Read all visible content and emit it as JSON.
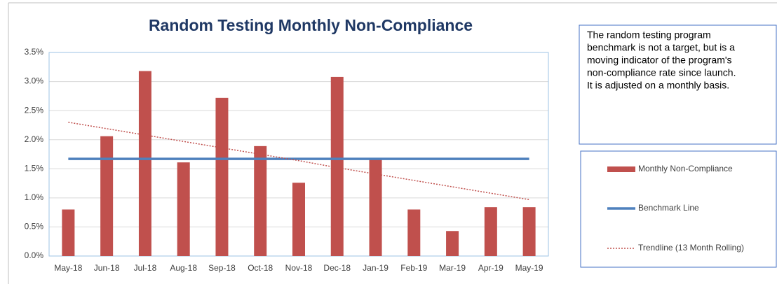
{
  "chart_data": {
    "type": "bar",
    "title": "Random Testing Monthly Non-Compliance",
    "categories": [
      "May-18",
      "Jun-18",
      "Jul-18",
      "Aug-18",
      "Sep-18",
      "Oct-18",
      "Nov-18",
      "Dec-18",
      "Jan-19",
      "Feb-19",
      "Mar-19",
      "Apr-19",
      "May-19"
    ],
    "series": [
      {
        "name": "Monthly Non-Compliance",
        "type": "bar",
        "color": "#c0504d",
        "values": [
          0.8,
          2.06,
          3.18,
          1.61,
          2.72,
          1.89,
          1.26,
          3.08,
          1.67,
          0.8,
          0.43,
          0.84,
          0.84
        ]
      },
      {
        "name": "Benchmark Line",
        "type": "line",
        "color": "#4f81bd",
        "values": [
          1.67,
          1.67,
          1.67,
          1.67,
          1.67,
          1.67,
          1.67,
          1.67,
          1.67,
          1.67,
          1.67,
          1.67,
          1.67
        ]
      },
      {
        "name": "Trendline (13 Month Rolling)",
        "type": "dotted",
        "color": "#c0504d",
        "values": [
          2.3,
          2.19,
          2.08,
          1.97,
          1.86,
          1.75,
          1.64,
          1.52,
          1.41,
          1.3,
          1.19,
          1.08,
          0.97
        ]
      }
    ],
    "ylim": [
      0,
      3.5
    ],
    "yticks": [
      {
        "value": 0,
        "label": "0.0%"
      },
      {
        "value": 0.5,
        "label": "0.5%"
      },
      {
        "value": 1,
        "label": "1.0%"
      },
      {
        "value": 1.5,
        "label": "1.5%"
      },
      {
        "value": 2,
        "label": "2.0%"
      },
      {
        "value": 2.5,
        "label": "2.5%"
      },
      {
        "value": 3,
        "label": "3.0%"
      },
      {
        "value": 3.5,
        "label": "3.5%"
      }
    ],
    "grid": true,
    "legend": "right",
    "annotation": [
      "The random testing program",
      "benchmark is not a target, but is a",
      "moving indicator of the program's",
      "non-compliance rate since launch.",
      "It is adjusted on a monthly basis."
    ]
  }
}
